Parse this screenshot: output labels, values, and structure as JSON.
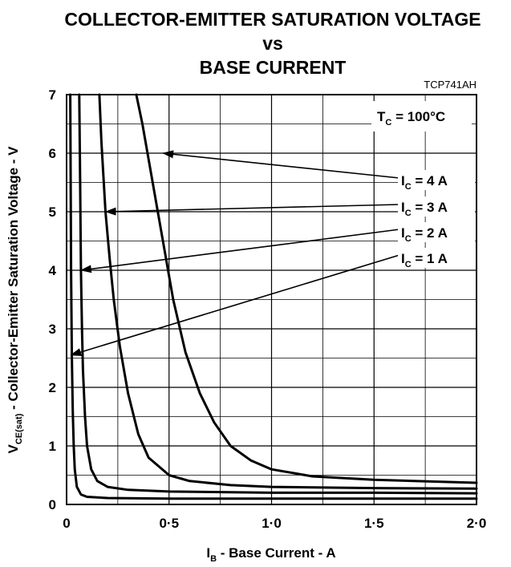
{
  "chart_data": {
    "type": "line",
    "title_lines": [
      "COLLECTOR-EMITTER SATURATION VOLTAGE",
      "vs",
      "BASE CURRENT"
    ],
    "figure_code": "TCP741AH",
    "xlabel": {
      "symbol": "I",
      "sub": "B",
      "text": " - Base Current - A"
    },
    "ylabel": {
      "symbol": "V",
      "sub": "CE(sat)",
      "text": " - Collector-Emitter Saturation Voltage - V"
    },
    "xlim": [
      0,
      2.0
    ],
    "ylim": [
      0,
      7
    ],
    "x_ticks": [
      {
        "value": 0,
        "label": "0"
      },
      {
        "value": 0.5,
        "label": "0·5"
      },
      {
        "value": 1.0,
        "label": "1·0"
      },
      {
        "value": 1.5,
        "label": "1·5"
      },
      {
        "value": 2.0,
        "label": "2·0"
      }
    ],
    "y_ticks": [
      {
        "value": 0,
        "label": "0"
      },
      {
        "value": 1,
        "label": "1"
      },
      {
        "value": 2,
        "label": "2"
      },
      {
        "value": 3,
        "label": "3"
      },
      {
        "value": 4,
        "label": "4"
      },
      {
        "value": 5,
        "label": "5"
      },
      {
        "value": 6,
        "label": "6"
      },
      {
        "value": 7,
        "label": "7"
      }
    ],
    "grid": true,
    "condition": {
      "symbol": "T",
      "sub": "C",
      "text": " = 100°C"
    },
    "series": [
      {
        "name": "I_C = 1 A",
        "label": {
          "symbol": "I",
          "sub": "C",
          "text": " = 1 A"
        },
        "arrow_target": [
          0.02,
          2.55
        ],
        "points": [
          [
            0.018,
            7.0
          ],
          [
            0.02,
            5.5
          ],
          [
            0.022,
            4.0
          ],
          [
            0.026,
            2.5
          ],
          [
            0.03,
            1.6
          ],
          [
            0.035,
            1.0
          ],
          [
            0.04,
            0.6
          ],
          [
            0.05,
            0.3
          ],
          [
            0.07,
            0.17
          ],
          [
            0.1,
            0.13
          ],
          [
            0.2,
            0.11
          ],
          [
            0.5,
            0.1
          ],
          [
            1.0,
            0.1
          ],
          [
            1.5,
            0.1
          ],
          [
            2.0,
            0.1
          ]
        ]
      },
      {
        "name": "I_C = 2 A",
        "label": {
          "symbol": "I",
          "sub": "C",
          "text": " = 2 A"
        },
        "arrow_target": [
          0.07,
          4.0
        ],
        "points": [
          [
            0.062,
            7.0
          ],
          [
            0.066,
            5.5
          ],
          [
            0.07,
            4.0
          ],
          [
            0.075,
            3.0
          ],
          [
            0.08,
            2.3
          ],
          [
            0.09,
            1.5
          ],
          [
            0.1,
            1.0
          ],
          [
            0.12,
            0.6
          ],
          [
            0.15,
            0.4
          ],
          [
            0.2,
            0.3
          ],
          [
            0.3,
            0.25
          ],
          [
            0.5,
            0.22
          ],
          [
            1.0,
            0.2
          ],
          [
            1.5,
            0.2
          ],
          [
            2.0,
            0.19
          ]
        ]
      },
      {
        "name": "I_C = 3 A",
        "label": {
          "symbol": "I",
          "sub": "C",
          "text": " = 3 A"
        },
        "arrow_target": [
          0.19,
          5.0
        ],
        "points": [
          [
            0.16,
            7.0
          ],
          [
            0.17,
            6.2
          ],
          [
            0.19,
            5.0
          ],
          [
            0.21,
            4.2
          ],
          [
            0.23,
            3.5
          ],
          [
            0.26,
            2.7
          ],
          [
            0.3,
            1.9
          ],
          [
            0.35,
            1.2
          ],
          [
            0.4,
            0.8
          ],
          [
            0.5,
            0.5
          ],
          [
            0.6,
            0.4
          ],
          [
            0.8,
            0.33
          ],
          [
            1.0,
            0.3
          ],
          [
            1.5,
            0.28
          ],
          [
            2.0,
            0.27
          ]
        ]
      },
      {
        "name": "I_C = 4 A",
        "label": {
          "symbol": "I",
          "sub": "C",
          "text": " = 4 A"
        },
        "arrow_target": [
          0.47,
          6.0
        ],
        "points": [
          [
            0.34,
            7.0
          ],
          [
            0.37,
            6.5
          ],
          [
            0.42,
            5.5
          ],
          [
            0.47,
            4.5
          ],
          [
            0.52,
            3.5
          ],
          [
            0.58,
            2.6
          ],
          [
            0.65,
            1.9
          ],
          [
            0.72,
            1.4
          ],
          [
            0.8,
            1.0
          ],
          [
            0.9,
            0.75
          ],
          [
            1.0,
            0.6
          ],
          [
            1.2,
            0.48
          ],
          [
            1.5,
            0.42
          ],
          [
            2.0,
            0.37
          ]
        ]
      }
    ]
  }
}
